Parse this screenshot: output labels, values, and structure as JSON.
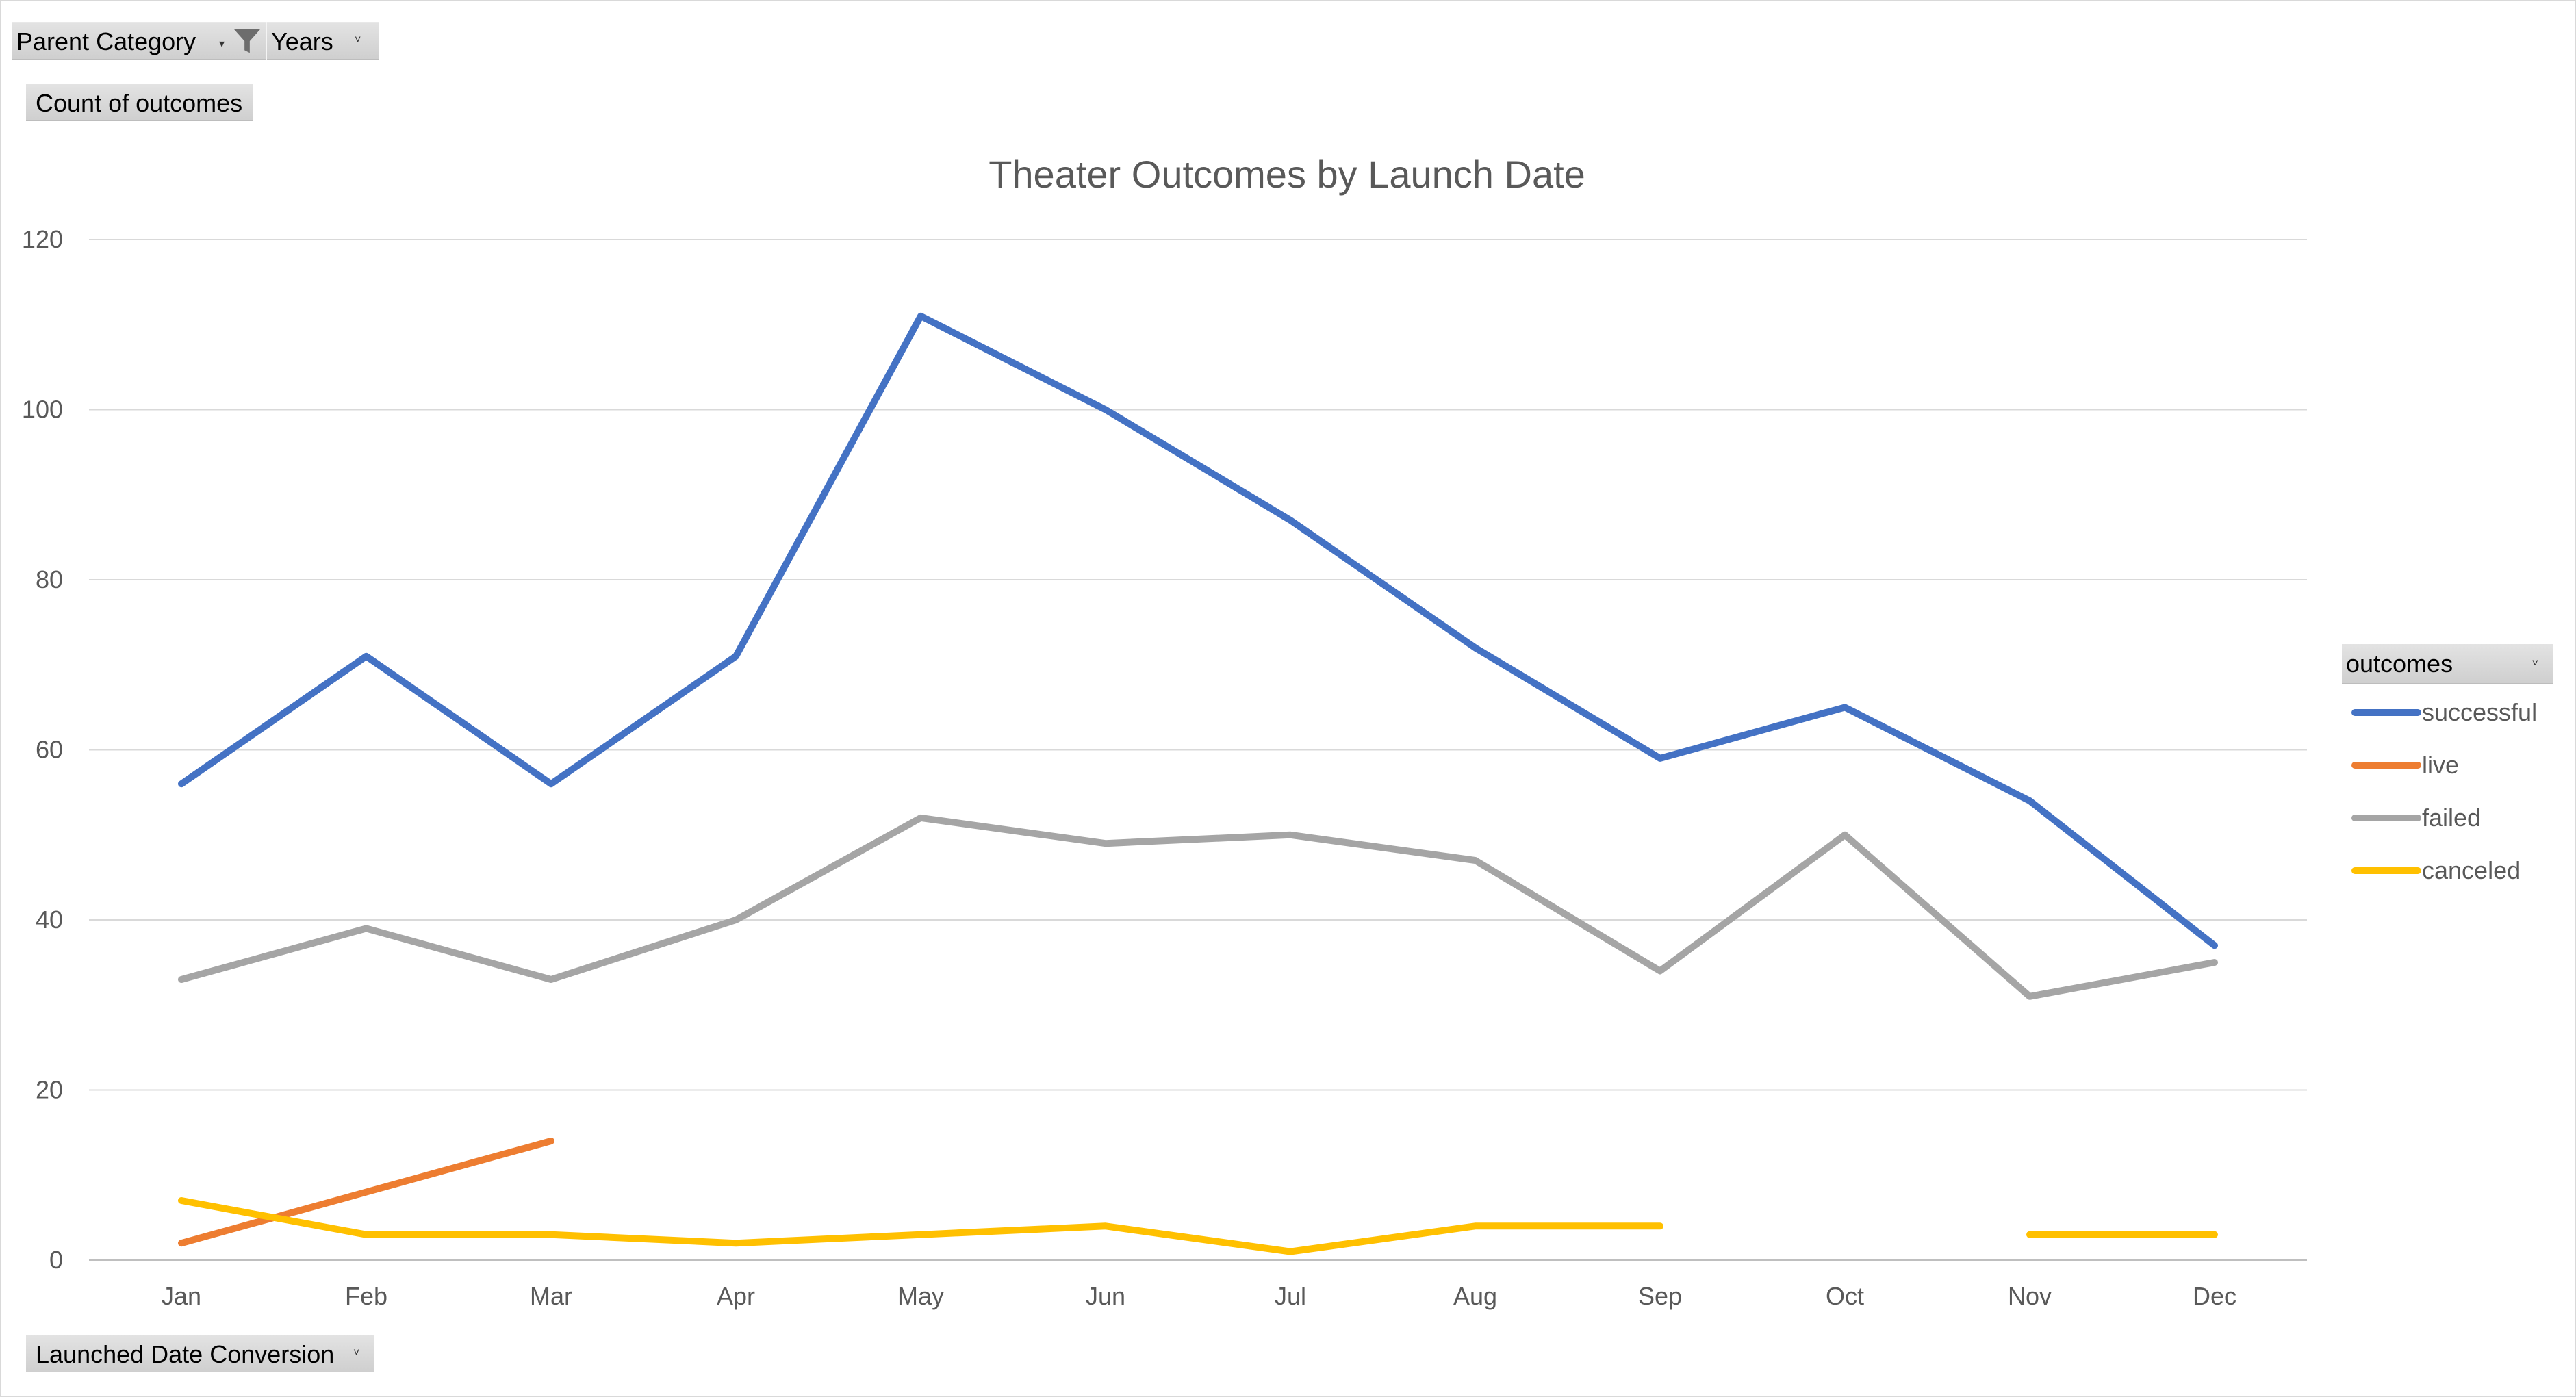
{
  "filters": {
    "parent_category_label": "Parent Category",
    "years_label": "Years",
    "values_label": "Count of outcomes",
    "axis_field_label": "Launched Date Conversion",
    "legend_field_label": "outcomes"
  },
  "icons": {
    "filter": "funnel-icon",
    "dropdown": "dropdown-arrow-icon"
  },
  "chart_data": {
    "type": "line",
    "title": "Theater Outcomes by Launch Date",
    "xlabel": "",
    "ylabel": "",
    "ylim": [
      0,
      120
    ],
    "ytick_step": 20,
    "grid": true,
    "legend_position": "right",
    "categories": [
      "Jan",
      "Feb",
      "Mar",
      "Apr",
      "May",
      "Jun",
      "Jul",
      "Aug",
      "Sep",
      "Oct",
      "Nov",
      "Dec"
    ],
    "series": [
      {
        "name": "successful",
        "color": "#4472C4",
        "values": [
          56,
          71,
          56,
          71,
          111,
          100,
          87,
          72,
          59,
          65,
          54,
          37
        ]
      },
      {
        "name": "live",
        "color": "#ED7D31",
        "values": [
          2,
          8,
          14,
          null,
          null,
          null,
          null,
          null,
          null,
          null,
          null,
          null
        ]
      },
      {
        "name": "failed",
        "color": "#A5A5A5",
        "values": [
          33,
          39,
          33,
          40,
          52,
          49,
          50,
          47,
          34,
          50,
          31,
          35
        ]
      },
      {
        "name": "canceled",
        "color": "#FFC000",
        "values": [
          7,
          3,
          3,
          2,
          3,
          4,
          1,
          4,
          4,
          null,
          3,
          3
        ]
      }
    ]
  }
}
